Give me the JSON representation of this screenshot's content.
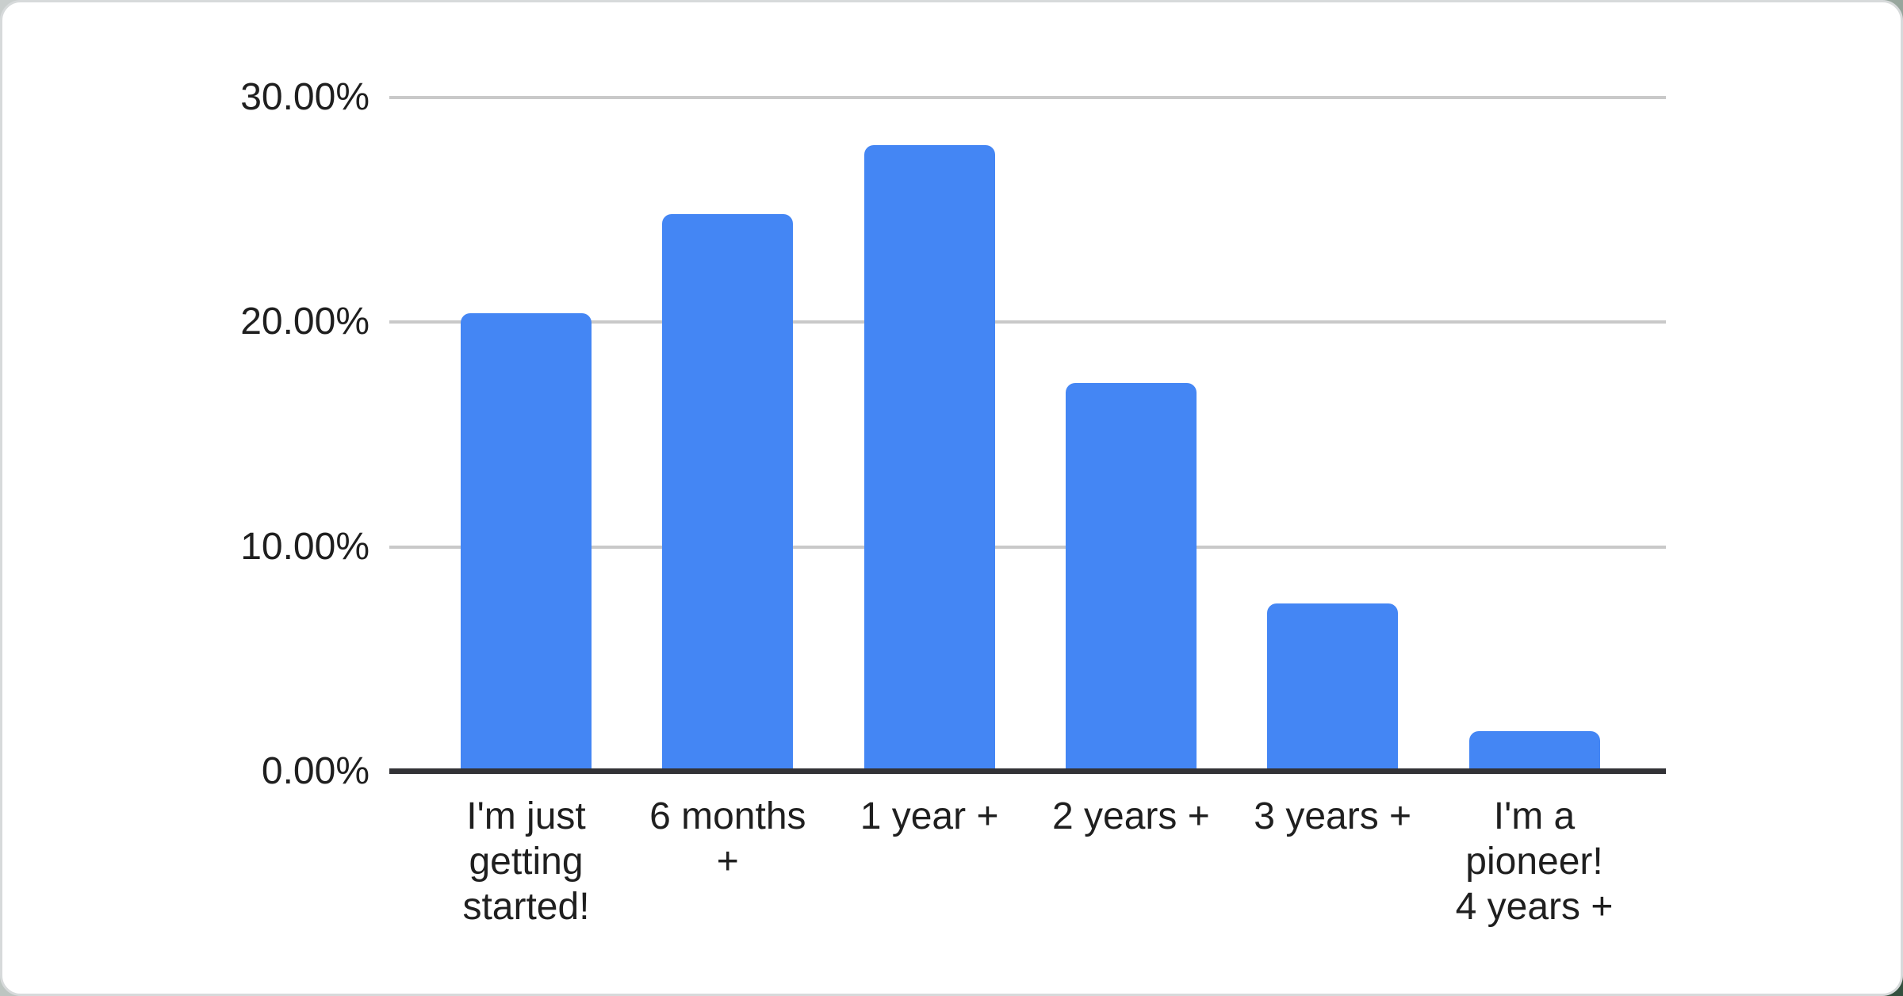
{
  "chart_data": {
    "type": "bar",
    "title": "",
    "xlabel": "",
    "ylabel": "",
    "categories": [
      "I'm just getting started!",
      "6 months +",
      "1 year +",
      "2 years +",
      "3 years +",
      "I'm a pioneer! 4 years +"
    ],
    "tick_label_lines": [
      "I'm just\ngetting\nstarted!",
      "6 months\n+",
      "1 year +",
      "2 years +",
      "3 years +",
      "I'm a\npioneer!\n4 years +"
    ],
    "values": [
      20.4,
      24.8,
      27.9,
      17.3,
      7.5,
      1.8
    ],
    "value_unit": "%",
    "ylim": [
      0,
      30
    ],
    "yticks": [
      {
        "label": "30.00%",
        "value": 30
      },
      {
        "label": "20.00%",
        "value": 20
      },
      {
        "label": "10.00%",
        "value": 10
      },
      {
        "label": "0.00%",
        "value": 0
      }
    ],
    "grid": "on",
    "legend_position": "none",
    "bar_color": "#4486f4",
    "gridline_color": "#c9c9c9",
    "axis_line_color": "#323236",
    "label_color": "#1f1f1f"
  }
}
